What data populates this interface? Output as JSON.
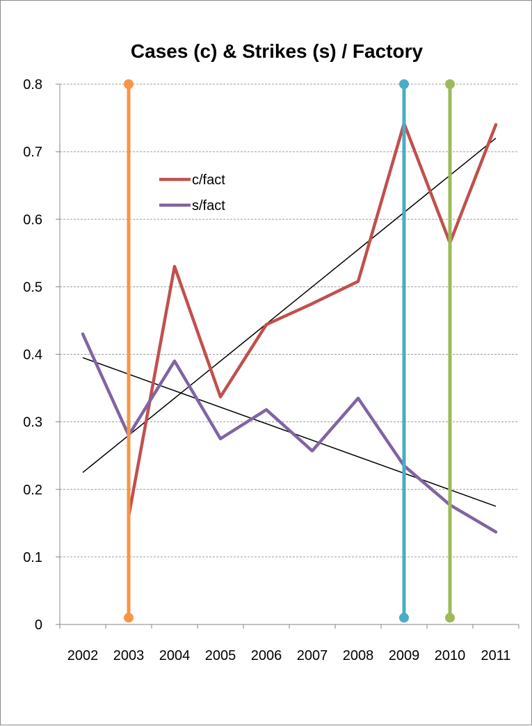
{
  "chart_data": {
    "type": "line",
    "title": "Cases (c) & Strikes (s) / Factory",
    "xlabel": "",
    "ylabel": "",
    "categories": [
      "2002",
      "2003",
      "2004",
      "2005",
      "2006",
      "2007",
      "2008",
      "2009",
      "2010",
      "2011"
    ],
    "ylim": [
      0,
      0.8
    ],
    "yticks": [
      "0",
      "0.1",
      "0.2",
      "0.3",
      "0.4",
      "0.5",
      "0.6",
      "0.7",
      "0.8"
    ],
    "grid": "horizontal dashed",
    "legend_position": "upper-left inside plot",
    "series": [
      {
        "name": "c/fact",
        "color": "#c0504d",
        "values": [
          null,
          0.16,
          0.53,
          0.337,
          0.444,
          0.475,
          0.508,
          0.742,
          0.565,
          0.74
        ]
      },
      {
        "name": "s/fact",
        "color": "#8064a2",
        "values": [
          0.43,
          0.28,
          0.39,
          0.275,
          0.318,
          0.257,
          0.335,
          0.235,
          0.177,
          0.137
        ]
      }
    ],
    "trendlines": [
      {
        "color": "#000000",
        "from": {
          "x": "2002",
          "y": 0.225
        },
        "to": {
          "x": "2011",
          "y": 0.72
        }
      },
      {
        "color": "#000000",
        "from": {
          "x": "2002",
          "y": 0.395
        },
        "to": {
          "x": "2011",
          "y": 0.175
        }
      }
    ],
    "markers": [
      {
        "x": "2003",
        "color": "#f79646",
        "y_from": 0.01,
        "y_to": 0.8
      },
      {
        "x": "2009",
        "color": "#4bacc6",
        "y_from": 0.01,
        "y_to": 0.8
      },
      {
        "x": "2010",
        "color": "#9bbb59",
        "y_from": 0.01,
        "y_to": 0.8
      }
    ]
  }
}
